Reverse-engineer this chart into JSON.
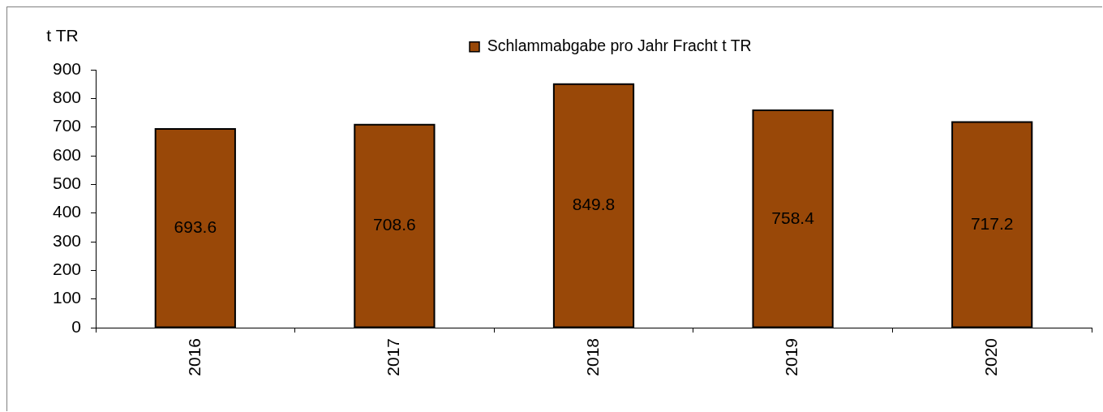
{
  "chart_data": {
    "type": "bar",
    "ylabel": "t TR",
    "categories": [
      "2016",
      "2017",
      "2018",
      "2019",
      "2020"
    ],
    "series": [
      {
        "name": "Schlammabgabe pro Jahr Fracht t TR",
        "color": "#994808",
        "values": [
          693.6,
          708.6,
          849.8,
          758.4,
          717.2
        ]
      }
    ],
    "ylim": [
      0,
      900
    ],
    "yticks": [
      0,
      100,
      200,
      300,
      400,
      500,
      600,
      700,
      800,
      900
    ],
    "data_labels": true,
    "legend": "top",
    "grid": false
  }
}
